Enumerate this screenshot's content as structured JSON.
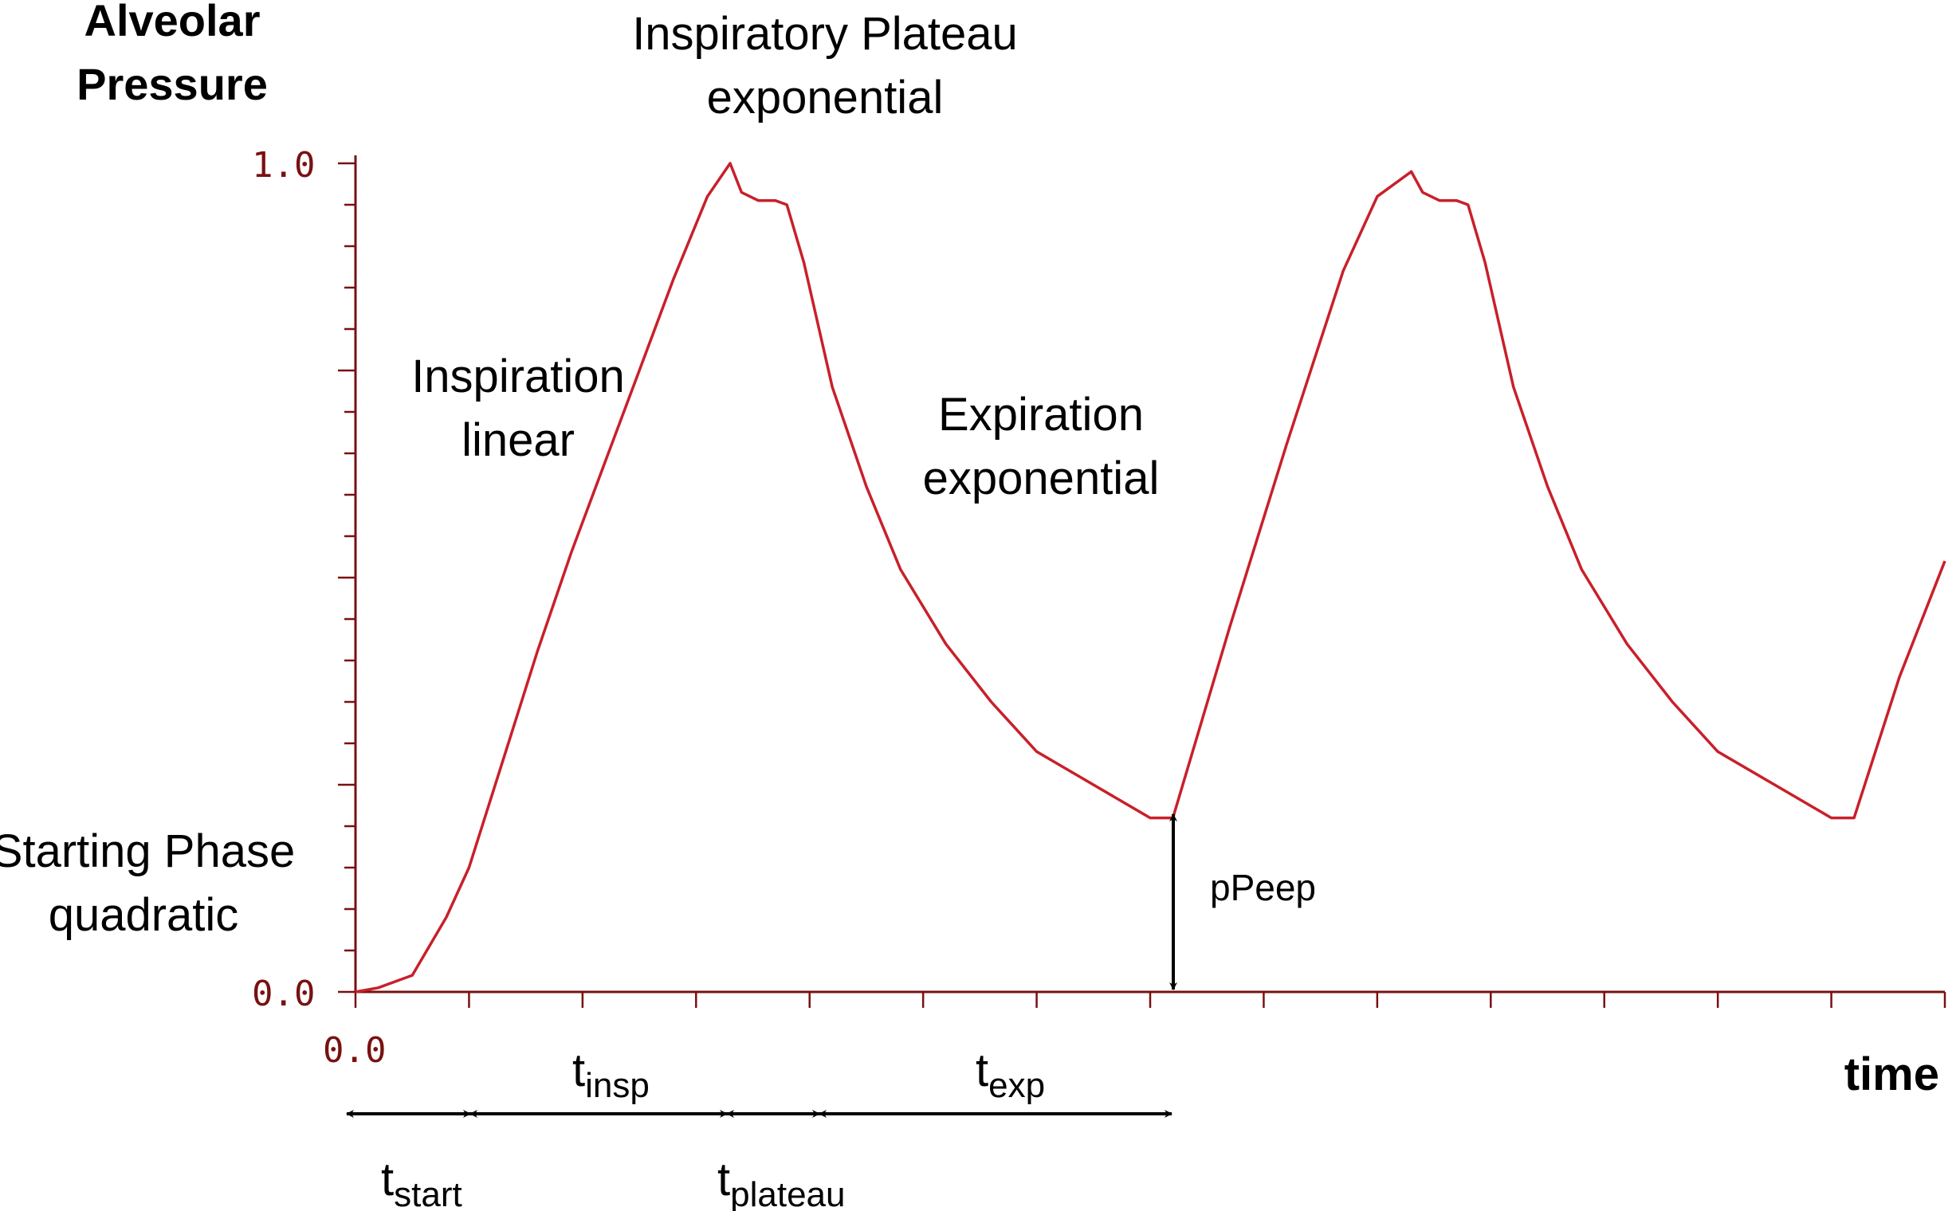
{
  "chart_data": {
    "type": "line",
    "ylabel_line1": "Alveolar",
    "ylabel_line2": "Pressure",
    "xlabel": "time",
    "y_tick_labels": [
      "1.0",
      "0.0"
    ],
    "x_tick_labels": [
      "0.0"
    ],
    "ylim": [
      0,
      1.0
    ],
    "xlim": [
      0,
      14
    ],
    "line_color": "#c8202a",
    "axis_color": "#7a1010",
    "series": [
      {
        "x": [
          0.0,
          0.2,
          0.5,
          0.8,
          1.0,
          1.3,
          1.6,
          1.9,
          2.2,
          2.5,
          2.8,
          3.1,
          3.3,
          3.4,
          3.55,
          3.7,
          3.8,
          3.95,
          4.2,
          4.5,
          4.8,
          5.2,
          5.6,
          6.0,
          6.5,
          7.0,
          7.2,
          7.7,
          8.2,
          8.7,
          9.0,
          9.3,
          9.4,
          9.55,
          9.7,
          9.8,
          9.95,
          10.2,
          10.5,
          10.8,
          11.2,
          11.6,
          12.0,
          12.5,
          13.0,
          13.2,
          13.6,
          14.0
        ],
        "y": [
          0.0,
          0.005,
          0.02,
          0.09,
          0.15,
          0.28,
          0.41,
          0.53,
          0.64,
          0.75,
          0.86,
          0.96,
          1.0,
          0.965,
          0.955,
          0.955,
          0.95,
          0.88,
          0.73,
          0.61,
          0.51,
          0.42,
          0.35,
          0.29,
          0.25,
          0.21,
          0.21,
          0.44,
          0.66,
          0.87,
          0.96,
          0.99,
          0.965,
          0.955,
          0.955,
          0.95,
          0.88,
          0.73,
          0.61,
          0.51,
          0.42,
          0.35,
          0.29,
          0.25,
          0.21,
          0.21,
          0.38,
          0.52
        ]
      }
    ],
    "annotations": {
      "plateau_line1": "Inspiratory Plateau",
      "plateau_line2": "exponential",
      "insp_line1": "Inspiration",
      "insp_line2": "linear",
      "exp_line1": "Expiration",
      "exp_line2": "exponential",
      "start_line1": "Starting Phase",
      "start_line2": "quadratic",
      "ppeep": "pPeep"
    },
    "intervals": {
      "tinsp_base": "t",
      "tinsp_sub": "insp",
      "texp_base": "t",
      "texp_sub": "exp",
      "tstart_base": "t",
      "tstart_sub": "start",
      "tplateau_base": "t",
      "tplateau_sub": "plateau"
    }
  }
}
